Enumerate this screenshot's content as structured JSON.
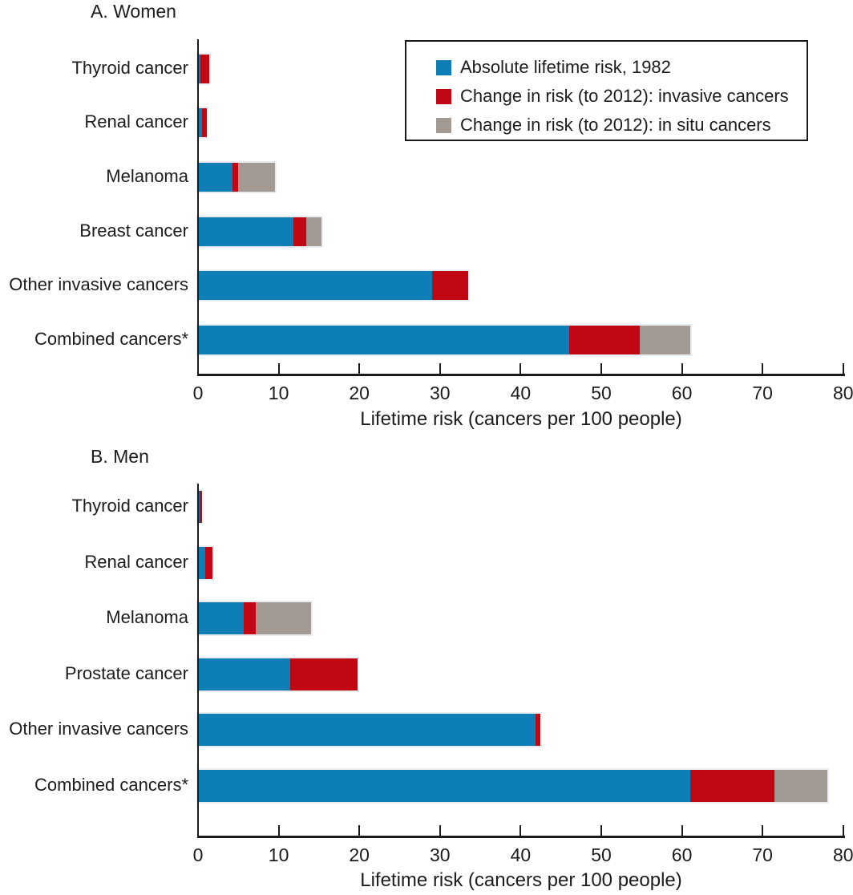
{
  "colors": {
    "blue": "#0d7eb6",
    "red": "#c10713",
    "gray": "#a39b93",
    "axis": "#1a1a1a",
    "text": "#1c1c1c"
  },
  "legend": {
    "items": [
      {
        "label": "Absolute lifetime risk, 1982",
        "color_key": "blue"
      },
      {
        "label": "Change in risk (to 2012): invasive cancers",
        "color_key": "red"
      },
      {
        "label": "Change in risk (to 2012): in situ cancers",
        "color_key": "gray"
      }
    ]
  },
  "chart_data": [
    {
      "type": "bar",
      "orientation": "horizontal",
      "stacked": true,
      "title": "A. Women",
      "xlabel": "Lifetime risk (cancers per 100 people)",
      "xlim": [
        0,
        80
      ],
      "xticks": [
        0,
        10,
        20,
        30,
        40,
        50,
        60,
        70,
        80
      ],
      "grid": false,
      "legend_position": "upper right, boxed",
      "categories": [
        "Thyroid cancer",
        "Renal cancer",
        "Melanoma",
        "Breast cancer",
        "Other invasive cancers",
        "Combined cancers*"
      ],
      "series": [
        {
          "name": "Absolute lifetime risk, 1982",
          "color_key": "blue",
          "values": [
            0.3,
            0.5,
            4.3,
            11.8,
            29.0,
            46.0
          ]
        },
        {
          "name": "Change in risk (to 2012): invasive cancers",
          "color_key": "red",
          "values": [
            1.1,
            0.6,
            0.7,
            1.6,
            4.5,
            8.8
          ]
        },
        {
          "name": "Change in risk (to 2012): in situ cancers",
          "color_key": "gray",
          "values": [
            0,
            0,
            4.5,
            1.9,
            0,
            6.2
          ]
        }
      ]
    },
    {
      "type": "bar",
      "orientation": "horizontal",
      "stacked": true,
      "title": "B. Men",
      "xlabel": "Lifetime risk (cancers per 100 people)",
      "xlim": [
        0,
        80
      ],
      "xticks": [
        0,
        10,
        20,
        30,
        40,
        50,
        60,
        70,
        80
      ],
      "grid": false,
      "legend_position": "none",
      "categories": [
        "Thyroid cancer",
        "Renal cancer",
        "Melanoma",
        "Prostate cancer",
        "Other invasive cancers",
        "Combined cancers*"
      ],
      "series": [
        {
          "name": "Absolute lifetime risk, 1982",
          "color_key": "blue",
          "values": [
            0.2,
            0.9,
            5.7,
            11.4,
            41.8,
            61.0
          ]
        },
        {
          "name": "Change in risk (to 2012): invasive cancers",
          "color_key": "red",
          "values": [
            0.3,
            0.9,
            1.5,
            8.4,
            0.6,
            10.5
          ]
        },
        {
          "name": "Change in risk (to 2012): in situ cancers",
          "color_key": "gray",
          "values": [
            0,
            0,
            6.8,
            0,
            0,
            6.5
          ]
        }
      ]
    }
  ]
}
